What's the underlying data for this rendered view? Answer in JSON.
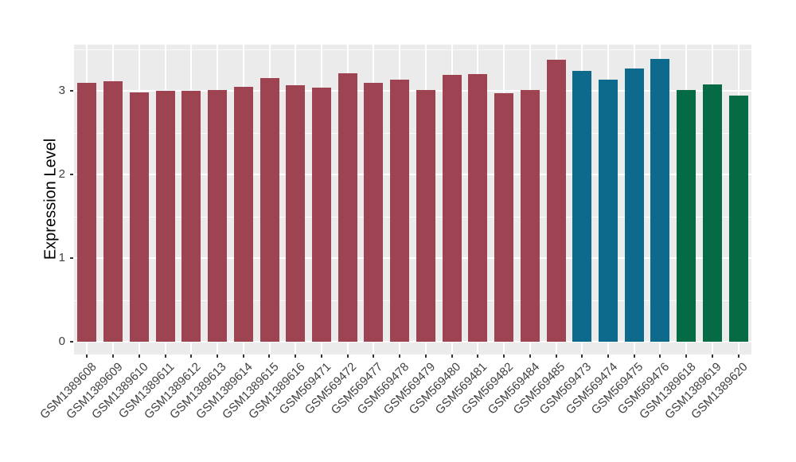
{
  "figure": {
    "background": "#FFFFFF",
    "panel_background": "#EBEBEB",
    "grid_color": "#FFFFFF",
    "axis_text_color": "#404040",
    "tick_mark_color": "#333333"
  },
  "chart_data": {
    "type": "bar",
    "title": "",
    "xlabel": "",
    "ylabel": "Expression Level",
    "ylim": [
      0,
      3.55
    ],
    "yticks": [
      "0",
      "1",
      "2",
      "3"
    ],
    "ytick_values": [
      0,
      1,
      2,
      3
    ],
    "minor_gridlines": [
      0.5,
      1.5,
      2.5,
      3.5
    ],
    "grid": "on",
    "legend": "none",
    "x_label_rotation_deg": 45,
    "categories": [
      "GSM1389608",
      "GSM1389609",
      "GSM1389610",
      "GSM1389611",
      "GSM1389612",
      "GSM1389613",
      "GSM1389614",
      "GSM1389615",
      "GSM1389616",
      "GSM569471",
      "GSM569472",
      "GSM569477",
      "GSM569478",
      "GSM569479",
      "GSM569480",
      "GSM569481",
      "GSM569482",
      "GSM569484",
      "GSM569485",
      "GSM569473",
      "GSM569474",
      "GSM569475",
      "GSM569476",
      "GSM1389618",
      "GSM1389619",
      "GSM1389620"
    ],
    "values": [
      3.1,
      3.11,
      2.98,
      3.0,
      3.0,
      3.01,
      3.05,
      3.15,
      3.07,
      3.04,
      3.21,
      3.1,
      3.13,
      3.01,
      3.19,
      3.2,
      2.97,
      3.01,
      3.37,
      3.24,
      3.13,
      3.27,
      3.38,
      3.01,
      3.08,
      2.94
    ],
    "groups": [
      "group1",
      "group1",
      "group1",
      "group1",
      "group1",
      "group1",
      "group1",
      "group1",
      "group1",
      "group1",
      "group1",
      "group1",
      "group1",
      "group1",
      "group1",
      "group1",
      "group1",
      "group1",
      "group1",
      "group2",
      "group2",
      "group2",
      "group2",
      "group3",
      "group3",
      "group3"
    ],
    "group_colors": {
      "group1": "#9E4352",
      "group2": "#0D6A8C",
      "group3": "#046B45"
    }
  }
}
